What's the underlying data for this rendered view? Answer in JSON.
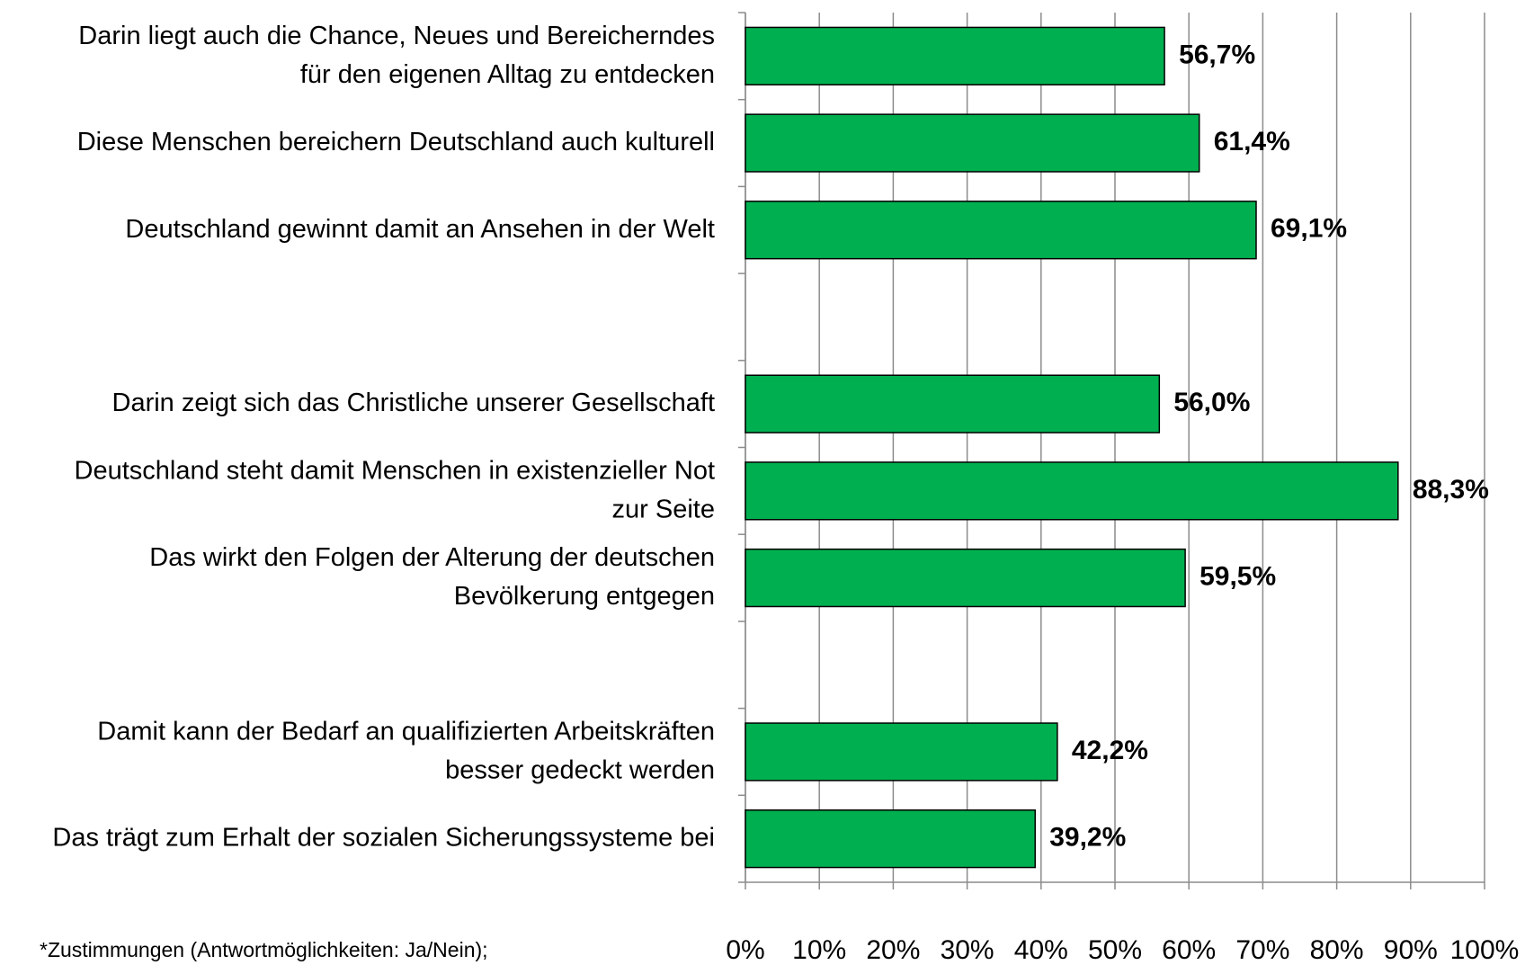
{
  "chart_data": {
    "type": "bar",
    "orientation": "horizontal",
    "categories": [
      "Darin liegt auch die Chance, Neues und Bereicherndes\nfür den eigenen Alltag zu entdecken",
      "Diese Menschen bereichern Deutschland auch kulturell",
      "Deutschland gewinnt damit an Ansehen in der Welt",
      null,
      "Darin zeigt sich das Christliche unserer Gesellschaft",
      "Deutschland steht damit Menschen in existenzieller Not\nzur Seite",
      "Das wirkt den Folgen der Alterung der deutschen\nBevölkerung entgegen",
      null,
      "Damit kann der Bedarf an qualifizierten Arbeitskräften\nbesser gedeckt werden",
      "Das trägt zum Erhalt der sozialen Sicherungssysteme bei"
    ],
    "values": [
      56.7,
      61.4,
      69.1,
      null,
      56.0,
      88.3,
      59.5,
      null,
      42.2,
      39.2
    ],
    "value_labels": [
      "56,7%",
      "61,4%",
      "69,1%",
      null,
      "56,0%",
      "88,3%",
      "59,5%",
      null,
      "42,2%",
      "39,2%"
    ],
    "color": "#00b050",
    "xlim": [
      0,
      100
    ],
    "xticks": [
      {
        "value": 0,
        "label": "0%"
      },
      {
        "value": 10,
        "label": "10%"
      },
      {
        "value": 20,
        "label": "20%"
      },
      {
        "value": 30,
        "label": "30%"
      },
      {
        "value": 40,
        "label": "40%"
      },
      {
        "value": 50,
        "label": "50%"
      },
      {
        "value": 60,
        "label": "60%"
      },
      {
        "value": 70,
        "label": "70%"
      },
      {
        "value": 80,
        "label": "80%"
      },
      {
        "value": 90,
        "label": "90%"
      },
      {
        "value": 100,
        "label": "100%"
      }
    ],
    "grid": true,
    "footnote": "*Zustimmungen (Antwortmöglichkeiten: Ja/Nein);"
  }
}
